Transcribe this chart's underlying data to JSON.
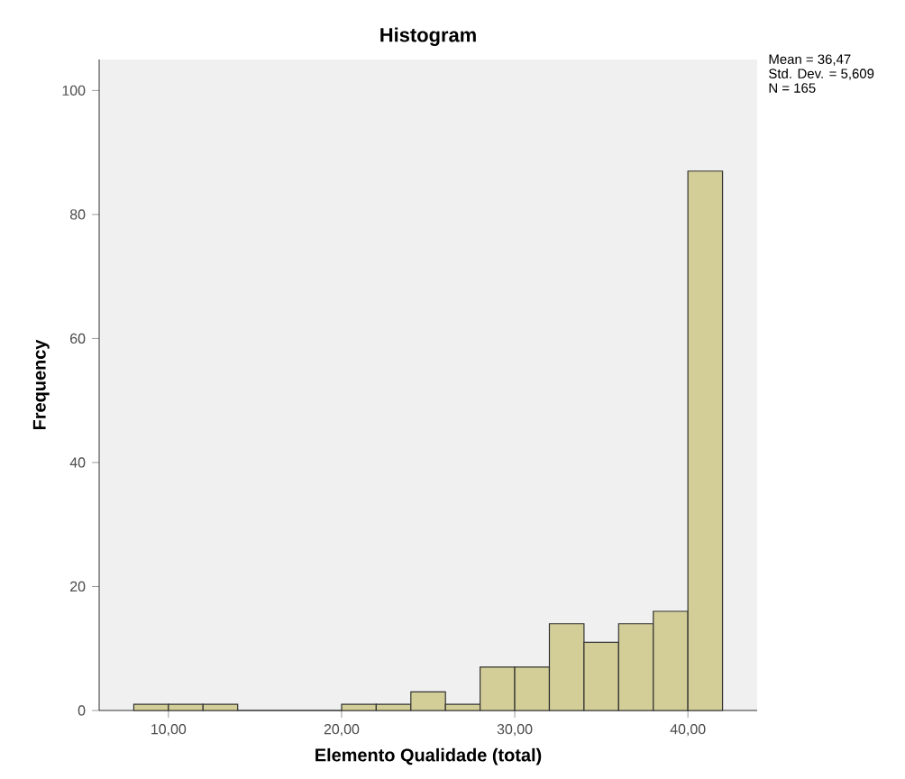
{
  "chart_data": {
    "type": "histogram",
    "title": "Histogram",
    "xlabel": "Elemento Qualidade (total)",
    "ylabel": "Frequency",
    "bins": [
      8,
      10,
      12,
      14,
      16,
      18,
      20,
      22,
      24,
      26,
      28,
      30,
      32,
      34,
      36,
      38,
      40,
      42
    ],
    "values": [
      1,
      1,
      1,
      0,
      0,
      0,
      1,
      1,
      3,
      1,
      7,
      7,
      14,
      11,
      14,
      16,
      87
    ],
    "color": "#d3ce97",
    "xlim": [
      6,
      44
    ],
    "ylim": [
      0,
      105
    ],
    "xticks": [
      {
        "value": 10,
        "label": "10,00"
      },
      {
        "value": 20,
        "label": "20,00"
      },
      {
        "value": 30,
        "label": "30,00"
      },
      {
        "value": 40,
        "label": "40,00"
      }
    ],
    "yticks": [
      0,
      20,
      40,
      60,
      80,
      100
    ],
    "annotations": [
      "Mean = 36,47",
      "Std. Dev. = 5,609",
      "N = 165"
    ],
    "grid": false
  }
}
